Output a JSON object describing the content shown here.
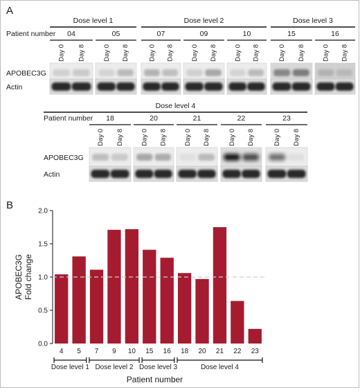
{
  "panel_a": {
    "label": "A",
    "row_patient_label": "Patient number",
    "blot_apobec_label": "APOBEC3G",
    "blot_actin_label": "Actin",
    "day_labels": [
      "Day 0",
      "Day 8"
    ],
    "top_groups": [
      {
        "name": "Dose level 1",
        "patients": [
          "04",
          "05"
        ]
      },
      {
        "name": "Dose level 2",
        "patients": [
          "07",
          "09",
          "10"
        ]
      },
      {
        "name": "Dose level 3",
        "patients": [
          "15",
          "16"
        ]
      }
    ],
    "bottom_groups": [
      {
        "name": "Dose level 4",
        "patients": [
          "18",
          "20",
          "21",
          "22",
          "23"
        ]
      }
    ]
  },
  "panel_b": {
    "label": "B",
    "ylabel_line1": "APOBEC3G",
    "ylabel_line2": "Fold change",
    "xlabel": "Patient number"
  },
  "chart_data": {
    "type": "bar",
    "categories": [
      "4",
      "5",
      "7",
      "9",
      "10",
      "15",
      "16",
      "18",
      "20",
      "21",
      "22",
      "23"
    ],
    "values": [
      1.04,
      1.31,
      1.11,
      1.71,
      1.72,
      1.41,
      1.29,
      1.06,
      0.97,
      1.75,
      0.64,
      0.22
    ],
    "ylim": [
      0,
      2.0
    ],
    "yticks": [
      "0.0",
      "0.5",
      "1.0",
      "1.5",
      "2.0"
    ],
    "reference_line": 1.0,
    "bar_color": "#a51c30",
    "groups": [
      {
        "name": "Dose level 1",
        "members": [
          "4",
          "5"
        ]
      },
      {
        "name": "Dose level 2",
        "members": [
          "7",
          "9",
          "10"
        ]
      },
      {
        "name": "Dose level 3",
        "members": [
          "15",
          "16"
        ]
      },
      {
        "name": "Dose level 4",
        "members": [
          "18",
          "20",
          "21",
          "22",
          "23"
        ]
      }
    ],
    "grid": false
  }
}
